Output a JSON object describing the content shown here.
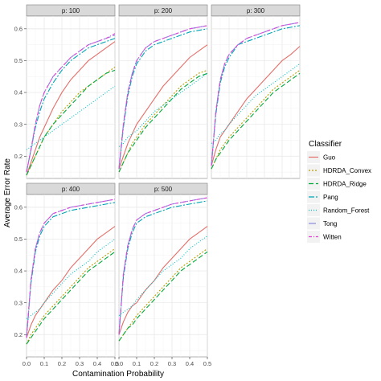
{
  "chart_data": {
    "type": "line",
    "xlabel": "Contamination Probability",
    "ylabel": "Average Error Rate",
    "xlim": [
      0,
      0.5
    ],
    "ylim": [
      0.13,
      0.64
    ],
    "x_ticks": [
      "0.0",
      "0.1",
      "0.2",
      "0.3",
      "0.4",
      "0.5"
    ],
    "y_ticks": [
      "0.2",
      "0.3",
      "0.4",
      "0.5",
      "0.6"
    ],
    "grid": true,
    "legend": {
      "title": "Classifier",
      "position": "right"
    },
    "x": [
      0,
      0.025,
      0.05,
      0.075,
      0.1,
      0.15,
      0.2,
      0.25,
      0.3,
      0.35,
      0.4,
      0.45,
      0.5
    ],
    "styles": {
      "Guo": {
        "color": "#e36f6a",
        "dash": ""
      },
      "HDRDA_Convex": {
        "color": "#b79f00",
        "dash": "2,2"
      },
      "HDRDA_Ridge": {
        "color": "#00a83a",
        "dash": "6,3"
      },
      "Pang": {
        "color": "#00a5b5",
        "dash": "7,2,2,2"
      },
      "Random_Forest": {
        "color": "#00bfc4",
        "dash": "1,2"
      },
      "Tong": {
        "color": "#8a8ae0",
        "dash": "9,3"
      },
      "Witten": {
        "color": "#e040d6",
        "dash": "4,2,1,2"
      }
    },
    "panels": [
      {
        "label": "p: 100",
        "series": [
          {
            "name": "Guo",
            "values": [
              0.14,
              0.18,
              0.22,
              0.26,
              0.29,
              0.35,
              0.4,
              0.44,
              0.47,
              0.5,
              0.52,
              0.54,
              0.56
            ]
          },
          {
            "name": "HDRDA_Convex",
            "values": [
              0.14,
              0.17,
              0.2,
              0.23,
              0.26,
              0.3,
              0.34,
              0.37,
              0.4,
              0.42,
              0.44,
              0.46,
              0.48
            ]
          },
          {
            "name": "HDRDA_Ridge",
            "values": [
              0.14,
              0.17,
              0.2,
              0.23,
              0.26,
              0.3,
              0.33,
              0.36,
              0.39,
              0.42,
              0.44,
              0.46,
              0.47
            ]
          },
          {
            "name": "Pang",
            "values": [
              0.15,
              0.22,
              0.29,
              0.34,
              0.38,
              0.43,
              0.47,
              0.5,
              0.52,
              0.54,
              0.55,
              0.56,
              0.57
            ]
          },
          {
            "name": "Random_Forest",
            "values": [
              0.22,
              0.23,
              0.24,
              0.25,
              0.26,
              0.28,
              0.3,
              0.32,
              0.34,
              0.36,
              0.38,
              0.4,
              0.42
            ]
          },
          {
            "name": "Tong",
            "values": [
              0.15,
              0.22,
              0.3,
              0.36,
              0.4,
              0.45,
              0.48,
              0.51,
              0.53,
              0.55,
              0.56,
              0.57,
              0.58
            ]
          },
          {
            "name": "Witten",
            "values": [
              0.15,
              0.22,
              0.3,
              0.36,
              0.4,
              0.45,
              0.48,
              0.51,
              0.53,
              0.55,
              0.56,
              0.57,
              0.585
            ]
          }
        ]
      },
      {
        "label": "p: 200",
        "series": [
          {
            "name": "Guo",
            "values": [
              0.16,
              0.2,
              0.24,
              0.27,
              0.3,
              0.34,
              0.38,
              0.42,
              0.45,
              0.48,
              0.51,
              0.53,
              0.55
            ]
          },
          {
            "name": "HDRDA_Convex",
            "values": [
              0.15,
              0.18,
              0.21,
              0.24,
              0.26,
              0.3,
              0.33,
              0.36,
              0.39,
              0.42,
              0.44,
              0.46,
              0.47
            ]
          },
          {
            "name": "HDRDA_Ridge",
            "values": [
              0.15,
              0.18,
              0.21,
              0.23,
              0.25,
              0.29,
              0.32,
              0.35,
              0.38,
              0.41,
              0.43,
              0.45,
              0.46
            ]
          },
          {
            "name": "Pang",
            "values": [
              0.16,
              0.29,
              0.39,
              0.45,
              0.49,
              0.53,
              0.55,
              0.56,
              0.57,
              0.58,
              0.59,
              0.595,
              0.6
            ]
          },
          {
            "name": "Random_Forest",
            "values": [
              0.23,
              0.24,
              0.26,
              0.27,
              0.28,
              0.31,
              0.34,
              0.36,
              0.38,
              0.4,
              0.42,
              0.44,
              0.46
            ]
          },
          {
            "name": "Tong",
            "values": [
              0.16,
              0.3,
              0.4,
              0.46,
              0.5,
              0.54,
              0.56,
              0.57,
              0.58,
              0.59,
              0.6,
              0.605,
              0.61
            ]
          },
          {
            "name": "Witten",
            "values": [
              0.16,
              0.3,
              0.4,
              0.46,
              0.5,
              0.54,
              0.56,
              0.57,
              0.58,
              0.59,
              0.6,
              0.605,
              0.61
            ]
          }
        ]
      },
      {
        "label": "p: 300",
        "series": [
          {
            "name": "Guo",
            "values": [
              0.17,
              0.22,
              0.26,
              0.28,
              0.3,
              0.34,
              0.38,
              0.41,
              0.44,
              0.47,
              0.5,
              0.52,
              0.545
            ]
          },
          {
            "name": "HDRDA_Convex",
            "values": [
              0.16,
              0.19,
              0.22,
              0.24,
              0.26,
              0.29,
              0.32,
              0.35,
              0.38,
              0.41,
              0.43,
              0.45,
              0.47
            ]
          },
          {
            "name": "HDRDA_Ridge",
            "values": [
              0.16,
              0.19,
              0.21,
              0.23,
              0.25,
              0.28,
              0.31,
              0.34,
              0.37,
              0.4,
              0.42,
              0.44,
              0.46
            ]
          },
          {
            "name": "Pang",
            "values": [
              0.17,
              0.33,
              0.43,
              0.48,
              0.51,
              0.55,
              0.56,
              0.57,
              0.58,
              0.59,
              0.6,
              0.605,
              0.61
            ]
          },
          {
            "name": "Random_Forest",
            "values": [
              0.24,
              0.25,
              0.27,
              0.28,
              0.3,
              0.33,
              0.36,
              0.39,
              0.41,
              0.43,
              0.45,
              0.47,
              0.49
            ]
          },
          {
            "name": "Tong",
            "values": [
              0.17,
              0.34,
              0.44,
              0.49,
              0.52,
              0.55,
              0.57,
              0.58,
              0.59,
              0.6,
              0.61,
              0.615,
              0.62
            ]
          },
          {
            "name": "Witten",
            "values": [
              0.17,
              0.34,
              0.44,
              0.49,
              0.52,
              0.55,
              0.57,
              0.58,
              0.59,
              0.6,
              0.61,
              0.615,
              0.62
            ]
          }
        ]
      },
      {
        "label": "p: 400",
        "series": [
          {
            "name": "Guo",
            "values": [
              0.19,
              0.23,
              0.26,
              0.28,
              0.3,
              0.34,
              0.37,
              0.41,
              0.44,
              0.47,
              0.5,
              0.52,
              0.54
            ]
          },
          {
            "name": "HDRDA_Convex",
            "values": [
              0.17,
              0.2,
              0.22,
              0.24,
              0.26,
              0.29,
              0.32,
              0.35,
              0.38,
              0.41,
              0.43,
              0.45,
              0.47
            ]
          },
          {
            "name": "HDRDA_Ridge",
            "values": [
              0.17,
              0.19,
              0.21,
              0.23,
              0.25,
              0.28,
              0.31,
              0.34,
              0.37,
              0.4,
              0.42,
              0.44,
              0.46
            ]
          },
          {
            "name": "Pang",
            "values": [
              0.19,
              0.36,
              0.46,
              0.51,
              0.54,
              0.57,
              0.58,
              0.59,
              0.595,
              0.6,
              0.605,
              0.61,
              0.615
            ]
          },
          {
            "name": "Random_Forest",
            "values": [
              0.25,
              0.26,
              0.27,
              0.28,
              0.3,
              0.33,
              0.36,
              0.39,
              0.41,
              0.43,
              0.46,
              0.48,
              0.5
            ]
          },
          {
            "name": "Tong",
            "values": [
              0.19,
              0.37,
              0.47,
              0.52,
              0.55,
              0.58,
              0.59,
              0.6,
              0.605,
              0.61,
              0.615,
              0.62,
              0.625
            ]
          },
          {
            "name": "Witten",
            "values": [
              0.19,
              0.37,
              0.47,
              0.52,
              0.55,
              0.58,
              0.59,
              0.6,
              0.605,
              0.61,
              0.615,
              0.62,
              0.625
            ]
          }
        ]
      },
      {
        "label": "p: 500",
        "series": [
          {
            "name": "Guo",
            "values": [
              0.2,
              0.24,
              0.27,
              0.29,
              0.3,
              0.34,
              0.37,
              0.41,
              0.44,
              0.47,
              0.5,
              0.52,
              0.54
            ]
          },
          {
            "name": "HDRDA_Convex",
            "values": [
              0.18,
              0.2,
              0.22,
              0.24,
              0.26,
              0.29,
              0.32,
              0.35,
              0.38,
              0.41,
              0.43,
              0.45,
              0.47
            ]
          },
          {
            "name": "HDRDA_Ridge",
            "values": [
              0.18,
              0.2,
              0.22,
              0.23,
              0.25,
              0.28,
              0.31,
              0.34,
              0.37,
              0.4,
              0.42,
              0.44,
              0.46
            ]
          },
          {
            "name": "Pang",
            "values": [
              0.2,
              0.38,
              0.47,
              0.52,
              0.55,
              0.57,
              0.58,
              0.59,
              0.6,
              0.605,
              0.61,
              0.615,
              0.62
            ]
          },
          {
            "name": "Random_Forest",
            "values": [
              0.26,
              0.27,
              0.28,
              0.29,
              0.31,
              0.34,
              0.37,
              0.4,
              0.42,
              0.44,
              0.47,
              0.49,
              0.51
            ]
          },
          {
            "name": "Tong",
            "values": [
              0.2,
              0.39,
              0.48,
              0.53,
              0.56,
              0.58,
              0.59,
              0.6,
              0.61,
              0.615,
              0.62,
              0.625,
              0.63
            ]
          },
          {
            "name": "Witten",
            "values": [
              0.2,
              0.39,
              0.48,
              0.53,
              0.56,
              0.58,
              0.59,
              0.6,
              0.61,
              0.615,
              0.62,
              0.625,
              0.63
            ]
          }
        ]
      }
    ]
  }
}
